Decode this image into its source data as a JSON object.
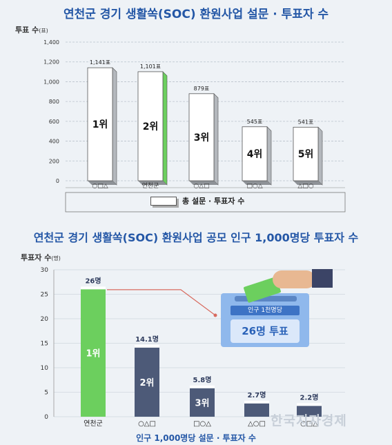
{
  "titles": {
    "chart1": "연천군 경기 생활쏙(SOC) 환원사업 설문 · 투표자  수",
    "chart2": "연천군 경기 생활쏙(SOC) 환원사업 공모 인구 1,000명당 투표자 수"
  },
  "colors": {
    "accent": "#2457a6",
    "highlight": "#6ccf5e",
    "navy_bar": "#4d5a78",
    "line": "#d86b5f"
  },
  "watermark": "한국지자경제",
  "ballot": {
    "tag": "인구 1천명당",
    "big": "26명 투표"
  },
  "chart_data": [
    {
      "type": "bar",
      "unit_label": "투표 수",
      "unit_small": "(표)",
      "categories": [
        "○□△",
        "연천군",
        "○△□",
        "□○△",
        "△□○"
      ],
      "values": [
        1141,
        1101,
        879,
        545,
        541
      ],
      "value_labels": [
        "1,141표",
        "1,101표",
        "879표",
        "545표",
        "541표"
      ],
      "rank_labels": [
        "1위",
        "2위",
        "3위",
        "4위",
        "5위"
      ],
      "highlight_index": 1,
      "yticks": [
        0,
        200,
        400,
        600,
        800,
        "1,000",
        "1,200",
        "1,400"
      ],
      "ylim": [
        0,
        1400
      ],
      "legend": "총 설문 · 투표자 수"
    },
    {
      "type": "bar",
      "unit_label": "투표자 수",
      "unit_small": "(명)",
      "categories": [
        "연천군",
        "○△□",
        "□○△",
        "△○□",
        "○□△"
      ],
      "values": [
        26,
        14.1,
        5.8,
        2.7,
        2.2
      ],
      "value_labels": [
        "26명",
        "14.1명",
        "5.8명",
        "2.7명",
        "2.2명"
      ],
      "rank_labels": [
        "1위",
        "2위",
        "3위",
        "",
        ""
      ],
      "highlight_index": 0,
      "yticks": [
        0,
        5,
        10,
        15,
        20,
        25,
        30
      ],
      "ylim": [
        0,
        30
      ],
      "legend": "인구 1,000명당 설문 · 투표자 수"
    }
  ]
}
